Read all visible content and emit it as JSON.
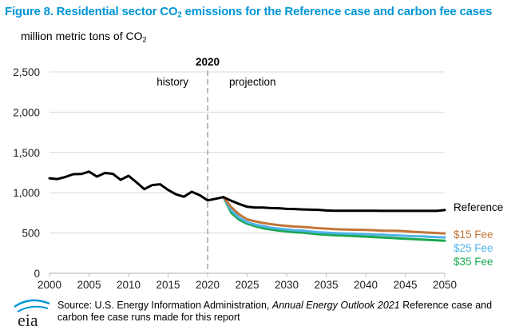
{
  "title": {
    "prefix": "Figure 8. Residential sector CO",
    "sub": "2",
    "suffix": " emissions for the Reference case and carbon fee cases"
  },
  "ylabel": {
    "prefix": "million metric tons of CO",
    "sub": "2"
  },
  "divider": {
    "year_label": "2020",
    "left_label": "history",
    "right_label": "projection"
  },
  "source": {
    "part1": "Source: U.S. Energy Information Administration, ",
    "italic": "Annual Energy Outlook 2021",
    "part2": " Reference case and carbon fee case runs made for this report"
  },
  "logo": {
    "text": "eia"
  },
  "colors": {
    "title": "#0096d7",
    "reference": "#000000",
    "fee15": "#c0763a",
    "fee25": "#4fb3e8",
    "fee35": "#1aa84f",
    "axis": "#bfbfbf",
    "grid": "#d9d9d9",
    "divider": "#a6a6a6"
  },
  "chart_data": {
    "type": "line",
    "xlim": [
      2000,
      2050
    ],
    "ylim": [
      0,
      2500
    ],
    "x_ticks": [
      "2000",
      "2005",
      "2010",
      "2015",
      "2020",
      "2025",
      "2030",
      "2035",
      "2040",
      "2045",
      "2050"
    ],
    "y_ticks": [
      "0",
      "500",
      "1,000",
      "1,500",
      "2,000",
      "2,500"
    ],
    "grid": "horizontal",
    "legend": "inline labels at right end of lines",
    "series": [
      {
        "name": "Reference",
        "color": "#000000",
        "x": [
          2000,
          2001,
          2002,
          2003,
          2004,
          2005,
          2006,
          2007,
          2008,
          2009,
          2010,
          2011,
          2012,
          2013,
          2014,
          2015,
          2016,
          2017,
          2018,
          2019,
          2020,
          2021,
          2022,
          2023,
          2024,
          2025,
          2026,
          2027,
          2028,
          2029,
          2030,
          2031,
          2032,
          2033,
          2034,
          2035,
          2036,
          2037,
          2038,
          2039,
          2040,
          2041,
          2042,
          2043,
          2044,
          2045,
          2046,
          2047,
          2048,
          2049,
          2050
        ],
        "values": [
          1180,
          1170,
          1195,
          1230,
          1232,
          1262,
          1200,
          1245,
          1235,
          1160,
          1210,
          1130,
          1045,
          1095,
          1105,
          1035,
          980,
          950,
          1012,
          970,
          905,
          925,
          945,
          900,
          860,
          825,
          815,
          815,
          810,
          808,
          800,
          798,
          793,
          790,
          788,
          780,
          777,
          776,
          776,
          776,
          776,
          776,
          775,
          775,
          775,
          775,
          775,
          775,
          775,
          775,
          785
        ]
      },
      {
        "name": "$15 Fee",
        "color": "#c0763a",
        "x": [
          2022,
          2023,
          2024,
          2025,
          2026,
          2027,
          2028,
          2029,
          2030,
          2031,
          2032,
          2033,
          2034,
          2035,
          2036,
          2037,
          2038,
          2039,
          2040,
          2041,
          2042,
          2043,
          2044,
          2045,
          2046,
          2047,
          2048,
          2049,
          2050
        ],
        "values": [
          945,
          820,
          730,
          670,
          645,
          625,
          610,
          598,
          588,
          580,
          575,
          568,
          560,
          555,
          548,
          545,
          542,
          540,
          538,
          535,
          530,
          528,
          527,
          522,
          515,
          510,
          505,
          500,
          495
        ]
      },
      {
        "name": "$25 Fee",
        "color": "#4fb3e8",
        "x": [
          2022,
          2023,
          2024,
          2025,
          2026,
          2027,
          2028,
          2029,
          2030,
          2031,
          2032,
          2033,
          2034,
          2035,
          2036,
          2037,
          2038,
          2039,
          2040,
          2041,
          2042,
          2043,
          2044,
          2045,
          2046,
          2047,
          2048,
          2049,
          2050
        ],
        "values": [
          945,
          780,
          690,
          635,
          605,
          585,
          565,
          555,
          545,
          535,
          530,
          520,
          510,
          505,
          500,
          495,
          492,
          488,
          485,
          480,
          478,
          472,
          470,
          465,
          460,
          458,
          452,
          448,
          445
        ]
      },
      {
        "name": "$35 Fee",
        "color": "#1aa84f",
        "x": [
          2022,
          2023,
          2024,
          2025,
          2026,
          2027,
          2028,
          2029,
          2030,
          2031,
          2032,
          2033,
          2034,
          2035,
          2036,
          2037,
          2038,
          2039,
          2040,
          2041,
          2042,
          2043,
          2044,
          2045,
          2046,
          2047,
          2048,
          2049,
          2050
        ],
        "values": [
          945,
          750,
          665,
          615,
          585,
          560,
          545,
          530,
          520,
          510,
          505,
          495,
          485,
          478,
          472,
          468,
          465,
          460,
          455,
          450,
          445,
          440,
          435,
          430,
          425,
          420,
          415,
          410,
          405
        ]
      }
    ]
  }
}
